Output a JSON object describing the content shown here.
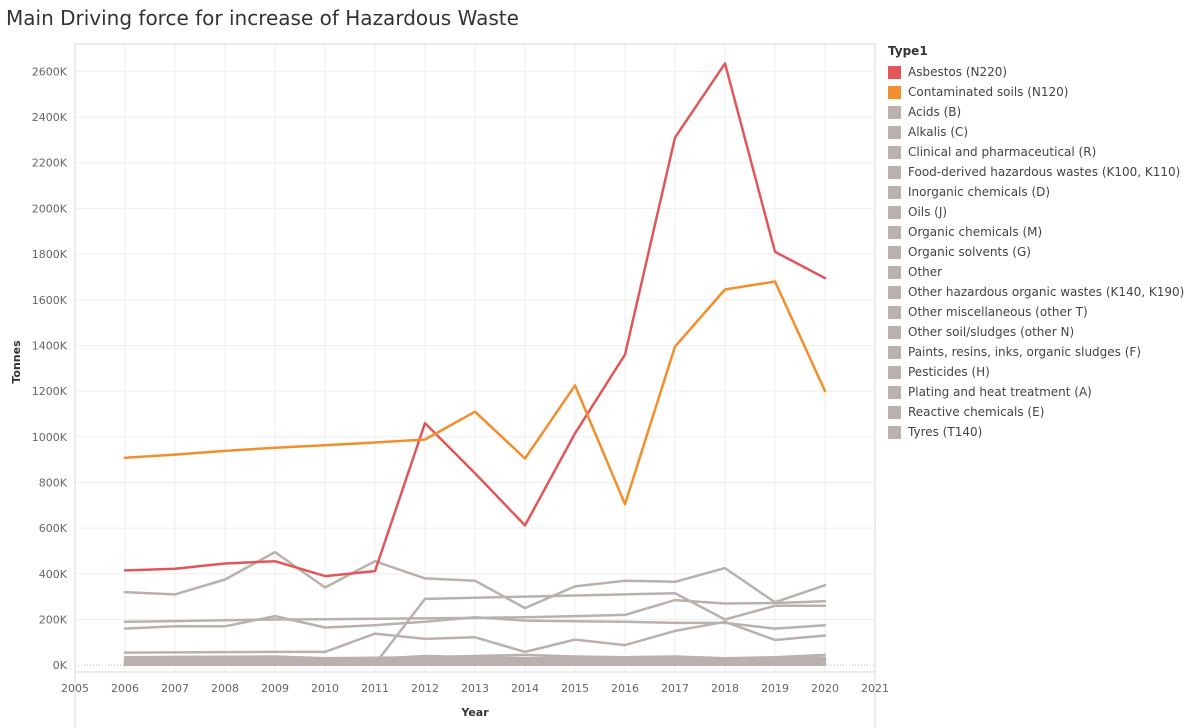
{
  "chart_data": {
    "type": "line",
    "title": "Main Driving force for increase of Hazardous Waste",
    "xlabel": "Year",
    "ylabel": "Tonnes",
    "xlim": [
      2005,
      2021
    ],
    "ylim": [
      -30000,
      2720000
    ],
    "x_ticks": [
      "2005",
      "2006",
      "2007",
      "2008",
      "2009",
      "2010",
      "2011",
      "2012",
      "2013",
      "2014",
      "2015",
      "2016",
      "2017",
      "2018",
      "2019",
      "2020",
      "2021"
    ],
    "y_ticks": [
      {
        "value": 0,
        "label": "0K"
      },
      {
        "value": 200000,
        "label": "200K"
      },
      {
        "value": 400000,
        "label": "400K"
      },
      {
        "value": 600000,
        "label": "600K"
      },
      {
        "value": 800000,
        "label": "800K"
      },
      {
        "value": 1000000,
        "label": "1000K"
      },
      {
        "value": 1200000,
        "label": "1200K"
      },
      {
        "value": 1400000,
        "label": "1400K"
      },
      {
        "value": 1600000,
        "label": "1600K"
      },
      {
        "value": 1800000,
        "label": "1800K"
      },
      {
        "value": 2000000,
        "label": "2000K"
      },
      {
        "value": 2200000,
        "label": "2200K"
      },
      {
        "value": 2400000,
        "label": "2400K"
      },
      {
        "value": 2600000,
        "label": "2600K"
      }
    ],
    "grid": true,
    "legend_title": "Type1",
    "legend_position": "right",
    "x": [
      2006,
      2007,
      2008,
      2009,
      2010,
      2011,
      2012,
      2013,
      2014,
      2015,
      2016,
      2017,
      2018,
      2019,
      2020
    ],
    "series": [
      {
        "name": "Asbestos (N220)",
        "color": "#e15759",
        "values": [
          415000,
          422000,
          445000,
          455000,
          390000,
          412000,
          1060000,
          840000,
          612000,
          1015000,
          1360000,
          2310000,
          2635000,
          1810000,
          1695000
        ]
      },
      {
        "name": "Contaminated soils (N120)",
        "color": "#f28e2b",
        "values": [
          908000,
          922000,
          938000,
          952000,
          963000,
          975000,
          988000,
          1110000,
          905000,
          1225000,
          705000,
          1395000,
          1645000,
          1680000,
          1200000
        ]
      },
      {
        "name": "Acids (B)",
        "color": "#bab0ac",
        "values": [
          320000,
          310000,
          375000,
          495000,
          340000,
          455000,
          380000,
          370000,
          250000,
          345000,
          370000,
          365000,
          425000,
          275000,
          350000
        ]
      },
      {
        "name": "Alkalis (C)",
        "color": "#bab0ac",
        "values": [
          190000,
          193000,
          197000,
          200000,
          201000,
          203000,
          205000,
          207000,
          210000,
          215000,
          220000,
          285000,
          270000,
          272000,
          280000
        ]
      },
      {
        "name": "Clinical and pharmaceutical (R)",
        "color": "#bab0ac",
        "values": [
          160000,
          170000,
          170000,
          215000,
          165000,
          175000,
          190000,
          210000,
          195000,
          192000,
          190000,
          185000,
          185000,
          160000,
          175000
        ]
      },
      {
        "name": "Food-derived hazardous wastes (K100, K110)",
        "color": "#bab0ac",
        "values": [
          5000,
          5000,
          5000,
          5000,
          5000,
          5000,
          290000,
          295000,
          300000,
          305000,
          310000,
          315000,
          200000,
          260000,
          260000
        ]
      },
      {
        "name": "Inorganic chemicals (D)",
        "color": "#bab0ac",
        "values": [
          55000,
          56000,
          57000,
          58000,
          58000,
          138000,
          115000,
          122000,
          58000,
          112000,
          88000,
          150000,
          190000,
          110000,
          130000
        ]
      },
      {
        "name": "Oils (J)",
        "color": "#bab0ac",
        "values": [
          35000,
          36000,
          37000,
          38000,
          30000,
          32000,
          35000,
          40000,
          45000,
          38000,
          35000,
          38000,
          30000,
          35000,
          45000
        ]
      },
      {
        "name": "Organic chemicals (M)",
        "color": "#bab0ac",
        "values": [
          28000,
          30000,
          32000,
          35000,
          25000,
          28000,
          40000,
          35000,
          30000,
          32000,
          28000,
          35000,
          25000,
          30000,
          32000
        ]
      },
      {
        "name": "Organic solvents (G)",
        "color": "#bab0ac",
        "values": [
          20000,
          22000,
          25000,
          30000,
          22000,
          25000,
          22000,
          28000,
          26000,
          24000,
          22000,
          26000,
          22000,
          24000,
          26000
        ]
      },
      {
        "name": "Other",
        "color": "#bab0ac",
        "values": [
          15000,
          16000,
          18000,
          20000,
          16000,
          18000,
          20000,
          22000,
          18000,
          20000,
          18000,
          20000,
          16000,
          18000,
          20000
        ]
      },
      {
        "name": "Other hazardous organic wastes (K140, K190)",
        "color": "#bab0ac",
        "values": [
          12000,
          12000,
          14000,
          16000,
          12000,
          14000,
          15000,
          18000,
          14000,
          16000,
          14000,
          16000,
          12000,
          14000,
          16000
        ]
      },
      {
        "name": "Other miscellaneous (other T)",
        "color": "#bab0ac",
        "values": [
          10000,
          10000,
          11000,
          12000,
          10000,
          11000,
          12000,
          14000,
          11000,
          12000,
          11000,
          12000,
          10000,
          11000,
          12000
        ]
      },
      {
        "name": "Other soil/sludges (other N)",
        "color": "#bab0ac",
        "values": [
          8000,
          8000,
          9000,
          10000,
          8000,
          9000,
          10000,
          11000,
          9000,
          10000,
          9000,
          10000,
          8000,
          9000,
          10000
        ]
      },
      {
        "name": "Paints, resins, inks, organic sludges (F)",
        "color": "#bab0ac",
        "values": [
          6000,
          6000,
          7000,
          8000,
          6000,
          7000,
          8000,
          9000,
          7000,
          8000,
          7000,
          8000,
          6000,
          7000,
          8000
        ]
      },
      {
        "name": "Pesticides (H)",
        "color": "#bab0ac",
        "values": [
          2000,
          2000,
          2000,
          2000,
          2000,
          2000,
          2000,
          2000,
          2000,
          2000,
          2000,
          2000,
          2000,
          2000,
          2000
        ]
      },
      {
        "name": "Plating and heat treatment (A)",
        "color": "#bab0ac",
        "values": [
          4000,
          4000,
          5000,
          5000,
          4000,
          5000,
          5000,
          6000,
          5000,
          5000,
          5000,
          5000,
          4000,
          5000,
          5000
        ]
      },
      {
        "name": "Reactive chemicals (E)",
        "color": "#bab0ac",
        "values": [
          3000,
          3000,
          3000,
          3000,
          3000,
          3000,
          3000,
          4000,
          3000,
          3000,
          3000,
          3000,
          3000,
          3000,
          3000
        ]
      },
      {
        "name": "Tyres (T140)",
        "color": "#bab0ac",
        "values": [
          18000,
          20000,
          22000,
          25000,
          20000,
          22000,
          25000,
          28000,
          22000,
          25000,
          22000,
          25000,
          20000,
          22000,
          25000
        ]
      }
    ]
  }
}
